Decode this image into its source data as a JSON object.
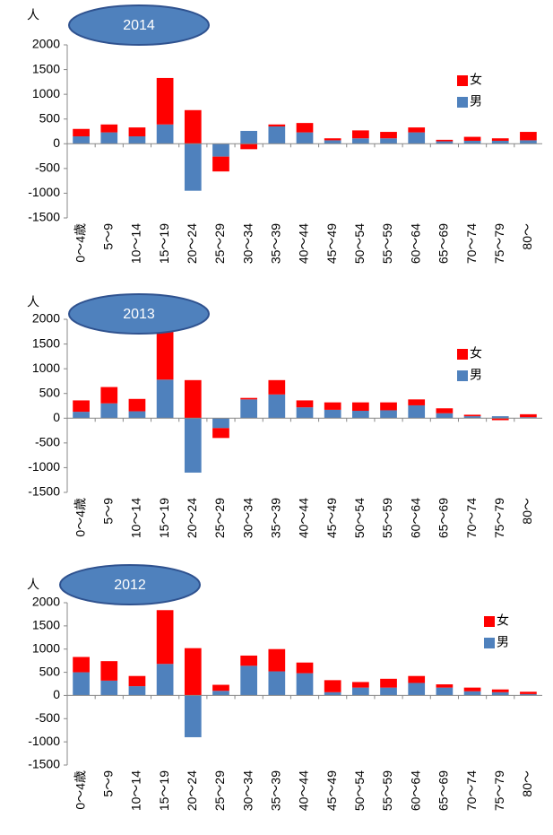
{
  "chart_data": [
    {
      "type": "bar",
      "stacked": true,
      "title": "2014",
      "y_label": "人",
      "categories": [
        "0～4歳",
        "5～9",
        "10～14",
        "15～19",
        "20～24",
        "25～29",
        "30～34",
        "35～39",
        "40～44",
        "45～49",
        "50～54",
        "55～59",
        "60～64",
        "65～69",
        "70～74",
        "75～79",
        "80～"
      ],
      "series": [
        {
          "name": "男",
          "color": "#4f81bd",
          "values": [
            150,
            230,
            150,
            390,
            -950,
            -260,
            260,
            350,
            230,
            70,
            110,
            110,
            230,
            50,
            60,
            60,
            70
          ]
        },
        {
          "name": "女",
          "color": "#ff0000",
          "values": [
            150,
            160,
            180,
            940,
            680,
            -300,
            -110,
            40,
            190,
            40,
            160,
            130,
            100,
            30,
            80,
            50,
            170
          ]
        }
      ],
      "ylim": [
        -1500,
        2000
      ],
      "yticks": [
        -1500,
        -1000,
        -500,
        0,
        500,
        1000,
        1500,
        2000
      ]
    },
    {
      "type": "bar",
      "stacked": true,
      "title": "2013",
      "y_label": "人",
      "categories": [
        "0～4歳",
        "5～9",
        "10～14",
        "15～19",
        "20～24",
        "25～29",
        "30～34",
        "35～39",
        "40～44",
        "45～49",
        "50～54",
        "55～59",
        "60～64",
        "65～69",
        "70～74",
        "75～79",
        "80～"
      ],
      "series": [
        {
          "name": "男",
          "color": "#4f81bd",
          "values": [
            130,
            300,
            140,
            780,
            -1100,
            -200,
            380,
            480,
            220,
            170,
            150,
            160,
            260,
            100,
            40,
            40,
            20
          ]
        },
        {
          "name": "女",
          "color": "#ff0000",
          "values": [
            230,
            330,
            250,
            1220,
            770,
            -200,
            30,
            290,
            140,
            150,
            170,
            160,
            120,
            100,
            30,
            -40,
            60
          ]
        }
      ],
      "ylim": [
        -1500,
        2000
      ],
      "yticks": [
        -1500,
        -1000,
        -500,
        0,
        500,
        1000,
        1500,
        2000
      ]
    },
    {
      "type": "bar",
      "stacked": true,
      "title": "2012",
      "y_label": "人",
      "categories": [
        "0～4歳",
        "5～9",
        "10～14",
        "15～19",
        "20～24",
        "25～29",
        "30～34",
        "35～39",
        "40～44",
        "45～49",
        "50～54",
        "55～59",
        "60～64",
        "65～69",
        "70～74",
        "75～79",
        "80～"
      ],
      "series": [
        {
          "name": "男",
          "color": "#4f81bd",
          "values": [
            500,
            320,
            200,
            680,
            -900,
            100,
            640,
            520,
            480,
            70,
            170,
            170,
            270,
            170,
            90,
            70,
            30
          ]
        },
        {
          "name": "女",
          "color": "#ff0000",
          "values": [
            330,
            420,
            220,
            1160,
            1020,
            130,
            220,
            480,
            230,
            260,
            120,
            190,
            150,
            70,
            80,
            60,
            50
          ]
        }
      ],
      "ylim": [
        -1500,
        2000
      ],
      "yticks": [
        -1500,
        -1000,
        -500,
        0,
        500,
        1000,
        1500,
        2000
      ]
    }
  ]
}
